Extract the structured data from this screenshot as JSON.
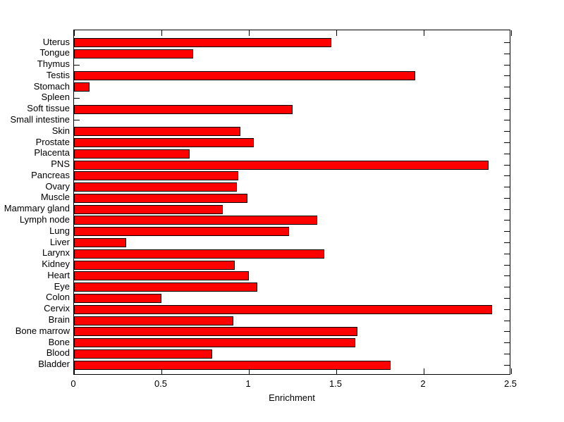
{
  "figure": {
    "background": "#FFFFFF",
    "axis_color": "#000000",
    "text_color": "#000000"
  },
  "chart_data": {
    "type": "bar",
    "orientation": "horizontal",
    "title": "",
    "xlabel": "Enrichment",
    "ylabel": "",
    "categories": [
      "Uterus",
      "Tongue",
      "Thymus",
      "Testis",
      "Stomach",
      "Spleen",
      "Soft tissue",
      "Small intestine",
      "Skin",
      "Prostate",
      "Placenta",
      "PNS",
      "Pancreas",
      "Ovary",
      "Muscle",
      "Mammary gland",
      "Lymph node",
      "Lung",
      "Liver",
      "Larynx",
      "Kidney",
      "Heart",
      "Eye",
      "Colon",
      "Cervix",
      "Brain",
      "Bone marrow",
      "Bone",
      "Blood",
      "Bladder"
    ],
    "values": [
      1.47,
      0.68,
      0,
      1.95,
      0.09,
      0,
      1.25,
      0,
      0.95,
      1.03,
      0.66,
      2.37,
      0.94,
      0.93,
      0.99,
      0.85,
      1.39,
      1.23,
      0.3,
      1.43,
      0.92,
      1.0,
      1.05,
      0.5,
      2.39,
      0.91,
      1.62,
      1.61,
      0.79,
      1.81
    ],
    "xlim": [
      0,
      2.5
    ],
    "xticks": [
      0,
      0.5,
      1,
      1.5,
      2,
      2.5
    ],
    "xtick_labels": [
      "0",
      "0.5",
      "1",
      "1.5",
      "2",
      "2.5"
    ],
    "bar_color": "#FF0000",
    "bar_edge_color": "#000000",
    "grid": false
  }
}
